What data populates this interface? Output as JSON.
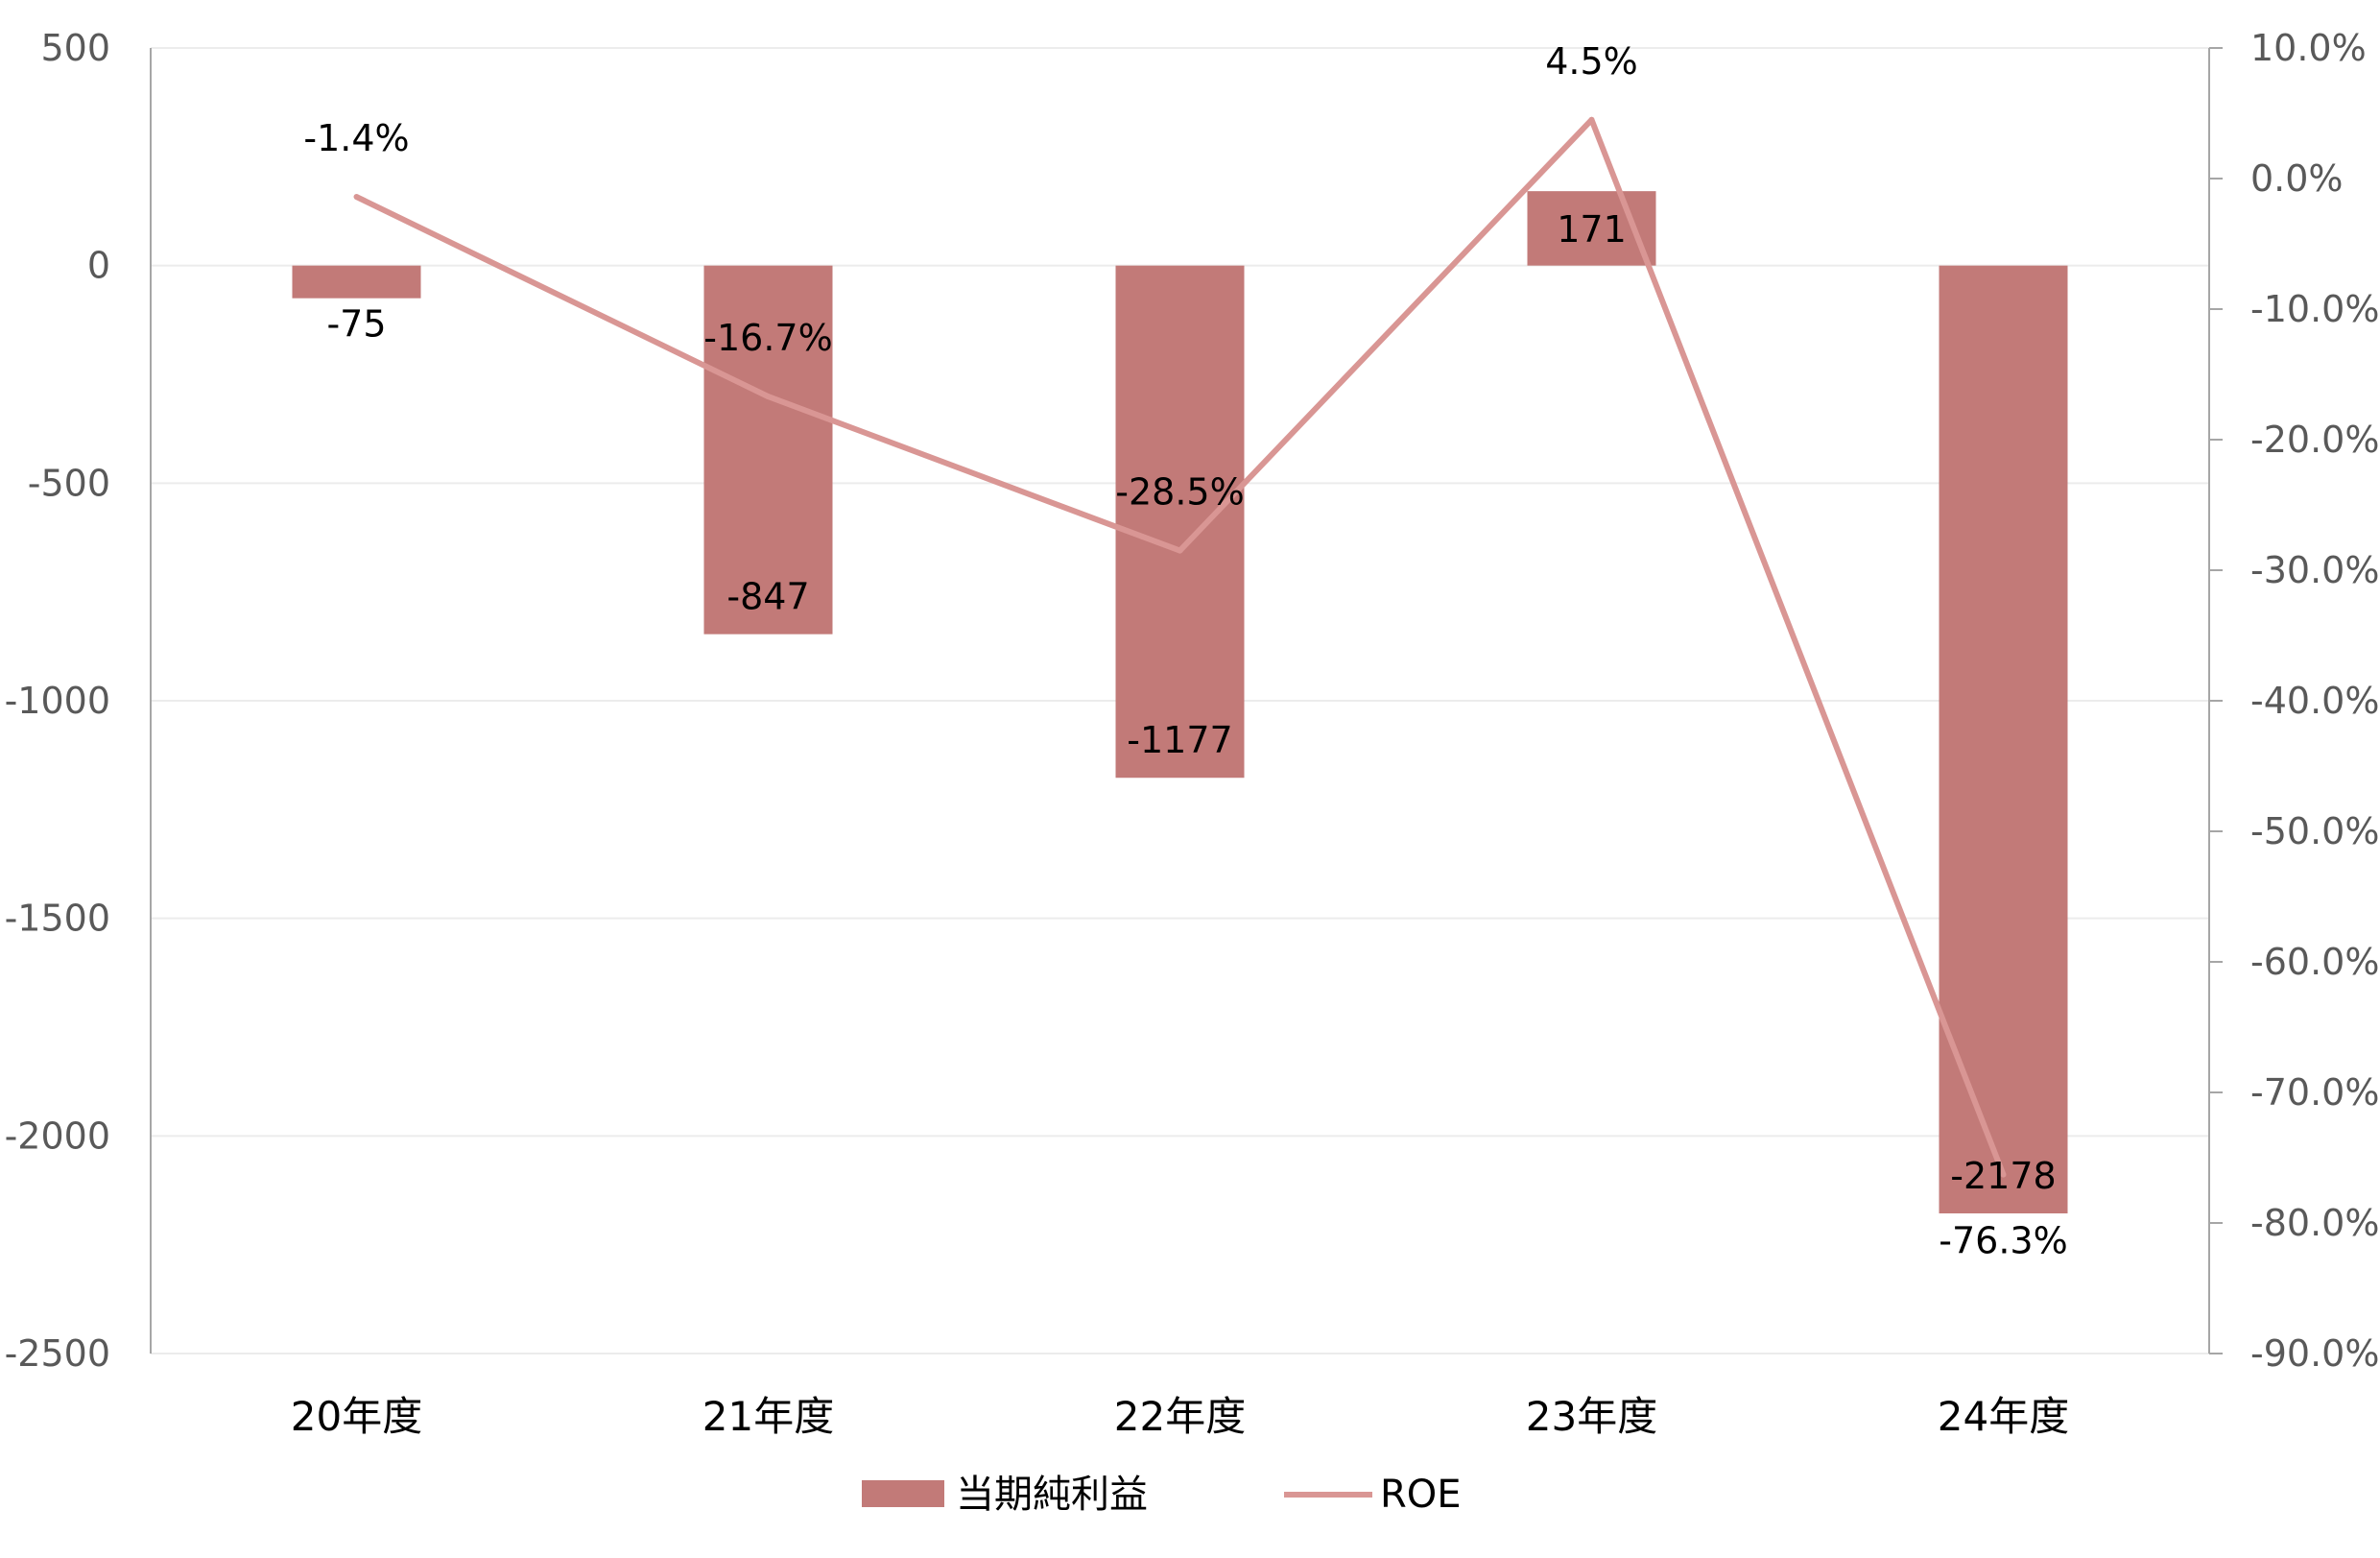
{
  "chart_data": {
    "type": "bar",
    "categories": [
      "20年度",
      "21年度",
      "22年度",
      "23年度",
      "24年度"
    ],
    "series": [
      {
        "name": "当期純利益",
        "type": "bar",
        "axis": "left",
        "values": [
          -75,
          -847,
          -1177,
          171,
          -2178
        ],
        "labels": [
          "-75",
          "-847",
          "-1177",
          "171",
          "-2178"
        ],
        "color": "#c27a78"
      },
      {
        "name": "ROE",
        "type": "line",
        "axis": "right",
        "values": [
          -1.4,
          -16.7,
          -28.5,
          4.5,
          -76.3
        ],
        "labels": [
          "-1.4%",
          "-16.7%",
          "-28.5%",
          "4.5%",
          "-76.3%"
        ],
        "color": "#d99694"
      }
    ],
    "left_axis": {
      "ylim": [
        -2500,
        500
      ],
      "ticks": [
        500,
        0,
        -500,
        -1000,
        -1500,
        -2000,
        -2500
      ],
      "tick_labels": [
        "500",
        "0",
        "-500",
        "-1000",
        "-1500",
        "-2000",
        "-2500"
      ]
    },
    "right_axis": {
      "ylim": [
        -90,
        10
      ],
      "ticks": [
        10,
        0,
        -10,
        -20,
        -30,
        -40,
        -50,
        -60,
        -70,
        -80,
        -90
      ],
      "tick_labels": [
        "10.0%",
        "0.0%",
        "-10.0%",
        "-20.0%",
        "-30.0%",
        "-40.0%",
        "-50.0%",
        "-60.0%",
        "-70.0%",
        "-80.0%",
        "-90.0%"
      ]
    },
    "grid": true,
    "legend_position": "bottom-center"
  }
}
